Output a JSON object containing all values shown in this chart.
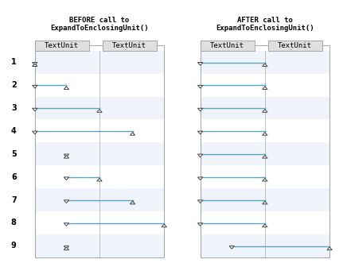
{
  "title_before": "BEFORE call to\nExpandToEnclosingUnit()",
  "title_after": "AFTER call to\nExpandToEnclosingUnit()",
  "col_labels": [
    "TextUnit",
    "TextUnit"
  ],
  "bg_color": "#f0f4f8",
  "panel_bg": "#f8f8f8",
  "line_color": "#5ba3c9",
  "border_color": "#cccccc",
  "circle_color": "#f0a030",
  "circle_text_color": "#000000",
  "n_rows": 9,
  "before": {
    "start_col": [
      0,
      0,
      0,
      0,
      1,
      1,
      1,
      1,
      1
    ],
    "end_col": [
      0,
      1,
      2,
      3,
      1,
      2,
      3,
      4,
      1
    ]
  },
  "after": {
    "start_col": [
      0,
      0,
      0,
      0,
      0,
      0,
      0,
      0,
      1
    ],
    "end_col": [
      2,
      2,
      2,
      2,
      2,
      2,
      2,
      2,
      4
    ]
  }
}
